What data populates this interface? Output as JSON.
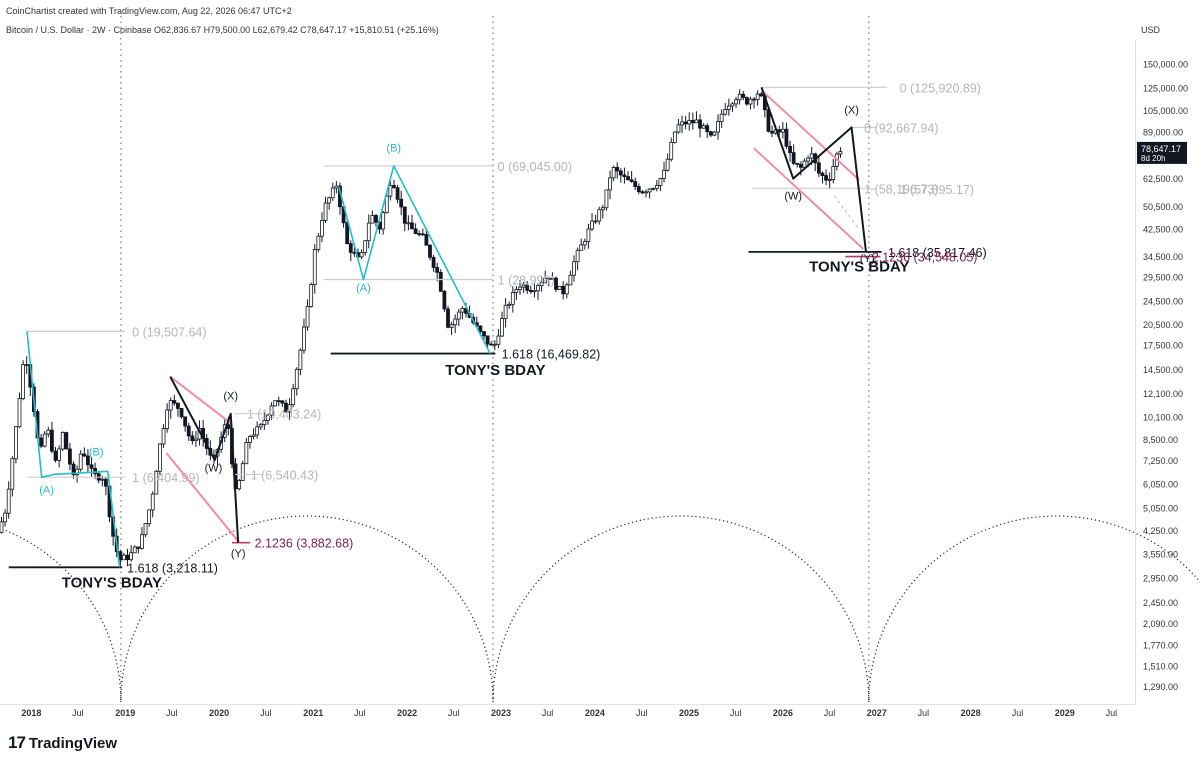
{
  "header": {
    "credit": "CoinChartist created with TradingView.com, Aug 22, 2026 06:47 UTC+2",
    "ticker_line": "Bitcoin / U.S. Dollar · 2W · Coinbase O62,836.67 H79,500.00 L62,679.42 C78,647.17 +15,810.51 (+25.16%)",
    "currency": "USD"
  },
  "brand": {
    "name": "TradingView",
    "logo_icon": "tradingview-logo-icon"
  },
  "price_tag": {
    "price": "78,647.17",
    "countdown": "8d 20h",
    "color": "#131722"
  },
  "colors": {
    "wave": "#26bcc9",
    "pink": "#f08ca4",
    "dark_fib": "#7a1f4a",
    "grey_fib": "#c8c8c8"
  },
  "chart_data": {
    "type": "candlestick",
    "title": "",
    "xlabel": "",
    "ylabel": "",
    "y_scale": "log",
    "ylim": [
      1150,
      170000
    ],
    "xlim": [
      "2017-09-01",
      "2029-10-01"
    ],
    "grid": false,
    "y_ticks": [
      "150,000.00",
      "125,000.00",
      "105,000.00",
      "89,000.00",
      "74,500.00",
      "62,500.00",
      "50,500.00",
      "42,500.00",
      "34,500.00",
      "29,500.00",
      "24,500.00",
      "20,500.00",
      "17,500.00",
      "14,500.00",
      "12,100.00",
      "10,100.00",
      "8,500.00",
      "7,250.00",
      "6,050.00",
      "5,050.00",
      "4,250.00",
      "3,550.00",
      "2,950.00",
      "2,450.00",
      "2,090.00",
      "1,770.00",
      "1,510.00",
      "1,290.00"
    ],
    "x_ticks": [
      {
        "label": "2018",
        "date": "2018-01-01",
        "bold": true
      },
      {
        "label": "Jul",
        "date": "2018-07-01"
      },
      {
        "label": "2019",
        "date": "2019-01-01",
        "bold": true
      },
      {
        "label": "Jul",
        "date": "2019-07-01"
      },
      {
        "label": "2020",
        "date": "2020-01-01",
        "bold": true
      },
      {
        "label": "Jul",
        "date": "2020-07-01"
      },
      {
        "label": "2021",
        "date": "2021-01-01",
        "bold": true
      },
      {
        "label": "Jul",
        "date": "2021-07-01"
      },
      {
        "label": "2022",
        "date": "2022-01-01",
        "bold": true
      },
      {
        "label": "Jul",
        "date": "2022-07-01"
      },
      {
        "label": "2023",
        "date": "2023-01-01",
        "bold": true
      },
      {
        "label": "Jul",
        "date": "2023-07-01"
      },
      {
        "label": "2024",
        "date": "2024-01-01",
        "bold": true
      },
      {
        "label": "Jul",
        "date": "2024-07-01"
      },
      {
        "label": "2025",
        "date": "2025-01-01",
        "bold": true
      },
      {
        "label": "Jul",
        "date": "2025-07-01"
      },
      {
        "label": "2026",
        "date": "2026-01-01",
        "bold": true
      },
      {
        "label": "Jul",
        "date": "2026-07-01"
      },
      {
        "label": "2027",
        "date": "2027-01-01",
        "bold": true
      },
      {
        "label": "Jul",
        "date": "2027-07-01"
      },
      {
        "label": "2028",
        "date": "2028-01-01",
        "bold": true
      },
      {
        "label": "Jul",
        "date": "2028-07-01"
      },
      {
        "label": "2029",
        "date": "2029-01-01",
        "bold": true
      },
      {
        "label": "Jul",
        "date": "2029-07-01"
      }
    ],
    "price_path": [
      [
        "2017-09-01",
        4200
      ],
      [
        "2017-10-01",
        5000
      ],
      [
        "2017-11-01",
        8000
      ],
      [
        "2017-12-15",
        17000
      ],
      [
        "2018-01-15",
        11500
      ],
      [
        "2018-02-10",
        7500
      ],
      [
        "2018-03-10",
        9500
      ],
      [
        "2018-04-15",
        7000
      ],
      [
        "2018-05-10",
        9000
      ],
      [
        "2018-06-25",
        6200
      ],
      [
        "2018-07-25",
        8000
      ],
      [
        "2018-09-05",
        6500
      ],
      [
        "2018-10-20",
        6400
      ],
      [
        "2018-11-20",
        4200
      ],
      [
        "2018-12-15",
        3400
      ],
      [
        "2019-01-25",
        3500
      ],
      [
        "2019-03-10",
        3900
      ],
      [
        "2019-04-20",
        5300
      ],
      [
        "2019-05-25",
        8300
      ],
      [
        "2019-06-25",
        11500
      ],
      [
        "2019-08-10",
        10800
      ],
      [
        "2019-09-25",
        8200
      ],
      [
        "2019-10-25",
        9300
      ],
      [
        "2019-12-15",
        7100
      ],
      [
        "2020-02-10",
        10000
      ],
      [
        "2020-03-15",
        5500
      ],
      [
        "2020-05-01",
        8700
      ],
      [
        "2020-06-20",
        9400
      ],
      [
        "2020-08-10",
        11700
      ],
      [
        "2020-10-01",
        10600
      ],
      [
        "2020-11-15",
        16000
      ],
      [
        "2020-12-20",
        23500
      ],
      [
        "2021-01-15",
        36000
      ],
      [
        "2021-02-20",
        50000
      ],
      [
        "2021-04-10",
        60000
      ],
      [
        "2021-05-20",
        38000
      ],
      [
        "2021-07-10",
        33000
      ],
      [
        "2021-08-20",
        48000
      ],
      [
        "2021-09-25",
        43000
      ],
      [
        "2021-11-10",
        64000
      ],
      [
        "2022-01-05",
        44000
      ],
      [
        "2022-03-10",
        40000
      ],
      [
        "2022-05-10",
        30000
      ],
      [
        "2022-06-20",
        20000
      ],
      [
        "2022-08-15",
        23500
      ],
      [
        "2022-10-15",
        19500
      ],
      [
        "2022-12-10",
        17000
      ],
      [
        "2023-01-25",
        23000
      ],
      [
        "2023-03-20",
        28000
      ],
      [
        "2023-05-10",
        27000
      ],
      [
        "2023-07-10",
        30000
      ],
      [
        "2023-09-05",
        26000
      ],
      [
        "2023-10-25",
        34000
      ],
      [
        "2023-12-15",
        42000
      ],
      [
        "2024-02-15",
        52000
      ],
      [
        "2024-03-15",
        68000
      ],
      [
        "2024-05-10",
        62000
      ],
      [
        "2024-07-10",
        57000
      ],
      [
        "2024-08-20",
        59000
      ],
      [
        "2024-10-01",
        64000
      ],
      [
        "2024-11-20",
        93000
      ],
      [
        "2024-12-25",
        96000
      ],
      [
        "2025-02-10",
        97000
      ],
      [
        "2025-04-10",
        84000
      ],
      [
        "2025-05-25",
        108000
      ],
      [
        "2025-07-15",
        118000
      ],
      [
        "2025-08-20",
        113000
      ],
      [
        "2025-10-10",
        122000
      ],
      [
        "2025-11-20",
        88000
      ],
      [
        "2026-01-10",
        90000
      ],
      [
        "2026-02-15",
        70000
      ],
      [
        "2026-03-20",
        68000
      ],
      [
        "2026-04-25",
        77000
      ],
      [
        "2026-05-30",
        65000
      ],
      [
        "2026-07-05",
        62000
      ],
      [
        "2026-08-15",
        78647
      ]
    ],
    "cycle_lines": [
      "2018-12-15",
      "2022-12-01",
      "2026-12-01"
    ],
    "cycle_arcs": [
      {
        "from": "2014-12-15",
        "to": "2018-12-15"
      },
      {
        "from": "2018-12-15",
        "to": "2022-12-01"
      },
      {
        "from": "2022-12-01",
        "to": "2026-12-01"
      },
      {
        "from": "2026-12-01",
        "to": "2030-12-01"
      }
    ],
    "series": [
      {
        "kind": "wave",
        "color": "#26bcc9",
        "points": [
          [
            "2017-12-15",
            19500
          ],
          [
            "2018-02-10",
            6400
          ],
          [
            "2018-04-01",
            6550
          ],
          [
            "2018-06-15",
            6600
          ],
          [
            "2018-10-25",
            6700
          ],
          [
            "2018-12-10",
            3218
          ]
        ]
      },
      {
        "kind": "wave",
        "color": "#26bcc9",
        "points": [
          [
            "2021-04-10",
            59000
          ],
          [
            "2021-07-15",
            29000
          ],
          [
            "2021-11-10",
            69045
          ],
          [
            "2022-11-20",
            16470
          ]
        ]
      },
      {
        "kind": "wave",
        "color": "#131722",
        "points": [
          [
            "2019-06-25",
            13800
          ],
          [
            "2019-12-15",
            7300
          ],
          [
            "2020-02-15",
            10400
          ],
          [
            "2020-03-15",
            3882
          ]
        ]
      },
      {
        "kind": "wave",
        "color": "#131722",
        "points": [
          [
            "2025-10-10",
            125920
          ],
          [
            "2026-02-10",
            62700
          ],
          [
            "2026-09-25",
            92667
          ],
          [
            "2026-11-20",
            35817
          ]
        ]
      }
    ],
    "channels": [
      {
        "color": "#f08ca4",
        "lines": [
          [
            [
              "2019-06-25",
              13800
            ],
            [
              "2020-02-20",
              9600
            ]
          ],
          [
            [
              "2019-06-10",
              7700
            ],
            [
              "2020-03-20",
              3880
            ]
          ]
        ]
      },
      {
        "color": "#f08ca4",
        "lines": [
          [
            [
              "2025-10-10",
              123000
            ],
            [
              "2026-10-25",
              62000
            ]
          ],
          [
            [
              "2025-09-10",
              79000
            ],
            [
              "2026-11-10",
              36600
            ]
          ]
        ]
      }
    ],
    "levels": [
      {
        "from": "2017-12-15",
        "to": "2019-01-01",
        "price": 19507.64,
        "label": "0 (19,507.64)",
        "color": "#c8c8c8",
        "label_date": "2018-12-20"
      },
      {
        "from": "2017-12-15",
        "to": "2019-01-01",
        "price": 6404.99,
        "label": "1 (6,404.99)",
        "color": "#c8c8c8",
        "label_date": "2018-12-20"
      },
      {
        "from": "2021-02-10",
        "to": "2022-12-01",
        "price": 69045.0,
        "label": "0 (69,045.00)",
        "color": "#c8c8c8",
        "label_date": "2022-11-10"
      },
      {
        "from": "2021-02-10",
        "to": "2022-12-01",
        "price": 28998.0,
        "label": "1 (28,998)",
        "color": "#c8c8c8",
        "label_date": "2022-11-10"
      },
      {
        "from": "2020-03-01",
        "to": "2020-06-20",
        "price": 10403.24,
        "label": "1 (10,403.24)",
        "color": "#c8c8c8",
        "label_date": "2020-03-10"
      },
      {
        "from": "2020-03-01",
        "to": "2020-06-20",
        "price": 6540.43,
        "label": "1 (6,540.43)",
        "color": "#c8c8c8",
        "label_date": "2020-03-25"
      },
      {
        "from": "2025-10-10",
        "to": "2027-02-10",
        "price": 125920.89,
        "label": "0 (125,920.89)",
        "color": "#c8c8c8",
        "label_date": "2027-02-20"
      },
      {
        "from": "2026-09-25",
        "to": "2027-01-01",
        "price": 92667.94,
        "label": "0 (92,667.94)",
        "color": "#c8c8c8",
        "label_date": "2026-10-05"
      },
      {
        "from": "2025-09-01",
        "to": "2026-12-01",
        "price": 58196.73,
        "label": "1 (58,196.73)",
        "color": "#c8c8c8",
        "label_date": "2026-10-05"
      },
      {
        "from": "2026-12-01",
        "to": "2027-01-01",
        "price": 57895.17,
        "label": "1 (57,895.17)",
        "color": "#c8c8c8",
        "label_date": "2027-02-20"
      },
      {
        "from": "2017-10-05",
        "to": "2018-12-20",
        "price": 3218.11,
        "label": "1.618 (3,218.11)",
        "color": "#131722",
        "label_date": "2018-12-20",
        "dark": true
      },
      {
        "from": "2021-03-10",
        "to": "2022-12-10",
        "price": 16469.82,
        "label": "1.618 (16,469.82)",
        "color": "#131722",
        "label_date": "2022-12-15",
        "dark": true
      },
      {
        "from": "2025-08-20",
        "to": "2027-01-20",
        "price": 35817.46,
        "label": "1.618 (35,817.46)",
        "color": "#131722",
        "label_date": "2027-01-25",
        "dark": true
      },
      {
        "from": "2020-02-20",
        "to": "2020-05-01",
        "price": 3882.68,
        "label": "2.1236 (3,882.68)",
        "color": "#7a1f4a",
        "label_date": "2020-05-10",
        "pinkline": true
      },
      {
        "from": "2026-09-01",
        "to": "2027-01-15",
        "price": 34548.05,
        "label": "2.1236 (34,548.05)",
        "color": "#7a1f4a",
        "label_date": "2026-12-05",
        "pinkline": true
      }
    ],
    "wave_labels": [
      {
        "text": "(A)",
        "date": "2018-03-01",
        "price": 5650,
        "color": "#26bcc9"
      },
      {
        "text": "(B)",
        "date": "2018-09-10",
        "price": 7550,
        "color": "#26bcc9"
      },
      {
        "text": "(A)",
        "date": "2021-07-15",
        "price": 26500,
        "color": "#26bcc9"
      },
      {
        "text": "(B)",
        "date": "2021-11-10",
        "price": 77000,
        "color": "#26bcc9"
      },
      {
        "text": "(W)",
        "date": "2019-12-10",
        "price": 6700,
        "color": "#131722"
      },
      {
        "text": "(X)",
        "date": "2020-02-15",
        "price": 11600,
        "color": "#131722"
      },
      {
        "text": "(Y)",
        "date": "2020-03-15",
        "price": 3480,
        "color": "#131722"
      },
      {
        "text": "(W)",
        "date": "2026-02-10",
        "price": 53500,
        "color": "#131722"
      },
      {
        "text": "(X)",
        "date": "2026-09-25",
        "price": 103000,
        "color": "#131722"
      },
      {
        "text": "(Y)",
        "date": "2026-11-25",
        "price": 33200,
        "color": "#131722"
      }
    ],
    "annotations": [
      {
        "text": "TONY'S BDAY",
        "date": "2018-11-10",
        "price": 2760
      },
      {
        "text": "TONY'S BDAY",
        "date": "2022-12-10",
        "price": 14000
      },
      {
        "text": "TONY'S BDAY",
        "date": "2026-10-25",
        "price": 30800
      }
    ]
  }
}
